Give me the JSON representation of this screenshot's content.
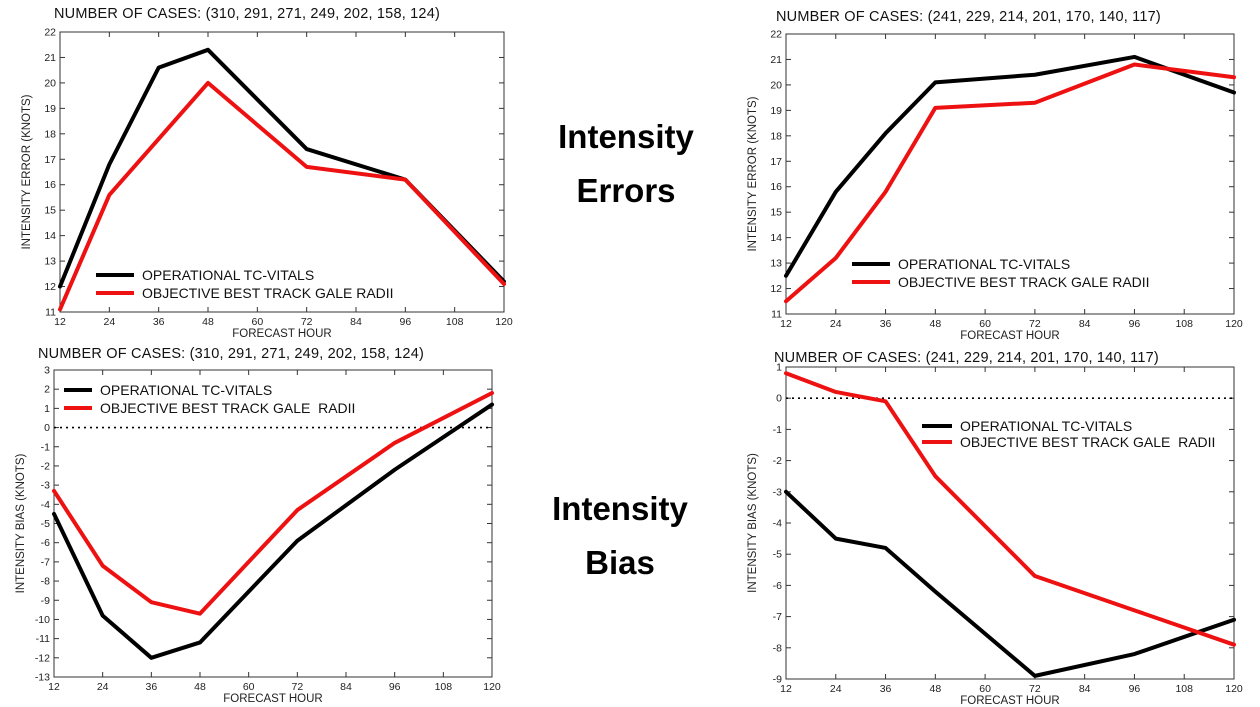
{
  "side_labels": {
    "errors_line1": "Intensity",
    "errors_line2": "Errors",
    "bias_line1": "Intensity",
    "bias_line2": "Bias"
  },
  "colors": {
    "operational": "#000000",
    "objective": "#ee1111"
  },
  "chart_data": [
    {
      "type": "line",
      "cases_text": "NUMBER OF CASES: (310, 291, 271, 249, 202, 158, 124)",
      "xlabel": "FORECAST HOUR",
      "ylabel": "INTENSITY ERROR (KNOTS)",
      "x": [
        12,
        24,
        36,
        48,
        72,
        96,
        120
      ],
      "xticks": [
        12,
        24,
        36,
        48,
        60,
        72,
        84,
        96,
        108,
        120
      ],
      "xlim": [
        12,
        120
      ],
      "ylim": [
        11,
        22
      ],
      "yticks": [
        11,
        12,
        13,
        14,
        15,
        16,
        17,
        18,
        19,
        20,
        21,
        22
      ],
      "zero_line": false,
      "legend_position": "bottom-left",
      "series": [
        {
          "name": "OPERATIONAL TC-VITALS",
          "color": "#000000",
          "values": [
            12.0,
            16.8,
            20.6,
            21.3,
            17.4,
            16.2,
            12.2
          ]
        },
        {
          "name": "OBJECTIVE BEST TRACK GALE RADII",
          "color": "#ee1111",
          "values": [
            11.1,
            15.6,
            17.8,
            20.0,
            16.7,
            16.2,
            12.1
          ]
        }
      ]
    },
    {
      "type": "line",
      "cases_text": "NUMBER OF CASES: (241, 229, 214, 201, 170, 140, 117)",
      "xlabel": "FORECAST HOUR",
      "ylabel": "INTENSITY ERROR (KNOTS)",
      "x": [
        12,
        24,
        36,
        48,
        72,
        96,
        120
      ],
      "xticks": [
        12,
        24,
        36,
        48,
        60,
        72,
        84,
        96,
        108,
        120
      ],
      "xlim": [
        12,
        120
      ],
      "ylim": [
        11,
        22
      ],
      "yticks": [
        11,
        12,
        13,
        14,
        15,
        16,
        17,
        18,
        19,
        20,
        21,
        22
      ],
      "zero_line": false,
      "legend_position": "bottom-right",
      "series": [
        {
          "name": "OPERATIONAL TC-VITALS",
          "color": "#000000",
          "values": [
            12.5,
            15.8,
            18.1,
            20.1,
            20.4,
            21.1,
            19.7
          ]
        },
        {
          "name": "OBJECTIVE BEST TRACK GALE RADII",
          "color": "#ee1111",
          "values": [
            11.5,
            13.2,
            15.8,
            19.1,
            19.3,
            20.8,
            20.3
          ]
        }
      ]
    },
    {
      "type": "line",
      "cases_text": "NUMBER OF CASES: (310, 291, 271, 249, 202, 158, 124)",
      "xlabel": "FORECAST HOUR",
      "ylabel": "INTENSITY BIAS (KNOTS)",
      "x": [
        12,
        24,
        36,
        48,
        72,
        96,
        120
      ],
      "xticks": [
        12,
        24,
        36,
        48,
        60,
        72,
        84,
        96,
        108,
        120
      ],
      "xlim": [
        12,
        120
      ],
      "ylim": [
        -13,
        3
      ],
      "yticks": [
        -13,
        -12,
        -11,
        -10,
        -9,
        -8,
        -7,
        -6,
        -5,
        -4,
        -3,
        -2,
        -1,
        0,
        1,
        2,
        3
      ],
      "zero_line": true,
      "legend_position": "top-left",
      "series": [
        {
          "name": "OPERATIONAL TC-VITALS",
          "color": "#000000",
          "values": [
            -4.5,
            -9.8,
            -12.0,
            -11.2,
            -5.9,
            -2.2,
            1.2
          ]
        },
        {
          "name": "OBJECTIVE BEST TRACK GALE  RADII",
          "color": "#ee1111",
          "values": [
            -3.3,
            -7.2,
            -9.1,
            -9.7,
            -4.3,
            -0.8,
            1.8
          ]
        }
      ]
    },
    {
      "type": "line",
      "cases_text": "NUMBER OF CASES: (241, 229, 214, 201, 170, 140, 117)",
      "xlabel": "FORECAST HOUR",
      "ylabel": "INTENSITY BIAS (KNOTS)",
      "x": [
        12,
        24,
        36,
        48,
        72,
        96,
        120
      ],
      "xticks": [
        12,
        24,
        36,
        48,
        60,
        72,
        84,
        96,
        108,
        120
      ],
      "xlim": [
        12,
        120
      ],
      "ylim": [
        -9,
        1
      ],
      "yticks": [
        -9,
        -8,
        -7,
        -6,
        -5,
        -4,
        -3,
        -2,
        -1,
        0,
        1
      ],
      "zero_line": true,
      "legend_position": "top-right",
      "series": [
        {
          "name": "OPERATIONAL TC-VITALS",
          "color": "#000000",
          "values": [
            -3.0,
            -4.5,
            -4.8,
            -6.2,
            -8.9,
            -8.2,
            -7.1
          ]
        },
        {
          "name": "OBJECTIVE BEST TRACK GALE  RADII",
          "color": "#ee1111",
          "values": [
            0.8,
            0.2,
            -0.1,
            -2.5,
            -5.7,
            -6.8,
            -7.9
          ]
        }
      ]
    }
  ]
}
